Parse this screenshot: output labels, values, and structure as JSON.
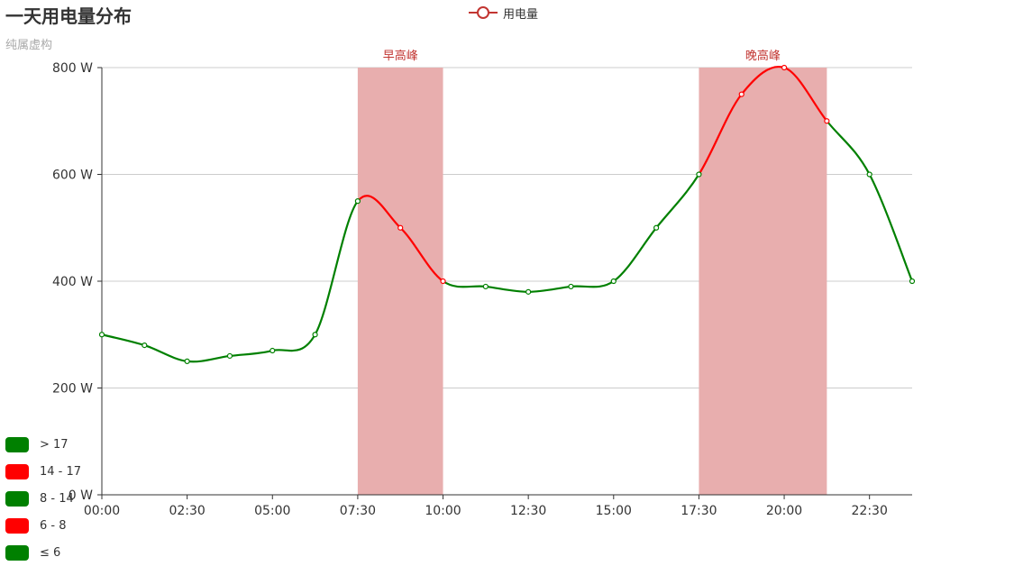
{
  "chart_data": {
    "type": "line",
    "title": "一天用电量分布",
    "subtitle": "纯属虚构",
    "series": [
      {
        "name": "用电量",
        "smooth": true,
        "values": [
          300,
          280,
          250,
          260,
          270,
          300,
          550,
          500,
          400,
          390,
          380,
          390,
          400,
          500,
          600,
          750,
          800,
          700,
          600,
          400
        ]
      }
    ],
    "x_tick_labels": [
      "00:00",
      "02:30",
      "05:00",
      "07:30",
      "10:00",
      "12:30",
      "15:00",
      "17:30",
      "20:00",
      "22:30"
    ],
    "y_tick_labels": [
      "0 W",
      "200 W",
      "400 W",
      "600 W",
      "800 W"
    ],
    "ylim": [
      0,
      800
    ],
    "grid": true,
    "legend_position": "top-center",
    "mark_areas": [
      {
        "label": "早高峰",
        "from": "07:30",
        "to": "10:00"
      },
      {
        "label": "晚高峰",
        "from": "17:30",
        "to": "21:15"
      }
    ],
    "mark_area_color": "#e8aeae",
    "mark_area_label_color": "#c23531",
    "visual_map": {
      "position": "bottom-left",
      "pieces": [
        {
          "label": "> 17",
          "color": "#008000"
        },
        {
          "label": "14 - 17",
          "color": "#ff0000"
        },
        {
          "label": "8 - 14",
          "color": "#008000"
        },
        {
          "label": "6 - 8",
          "color": "#ff0000"
        },
        {
          "label": "≤ 6",
          "color": "#008000"
        }
      ]
    },
    "colors": {
      "green": "#008000",
      "red": "#ff0000",
      "grid": "#cccccc",
      "legend": "#c23531"
    }
  }
}
